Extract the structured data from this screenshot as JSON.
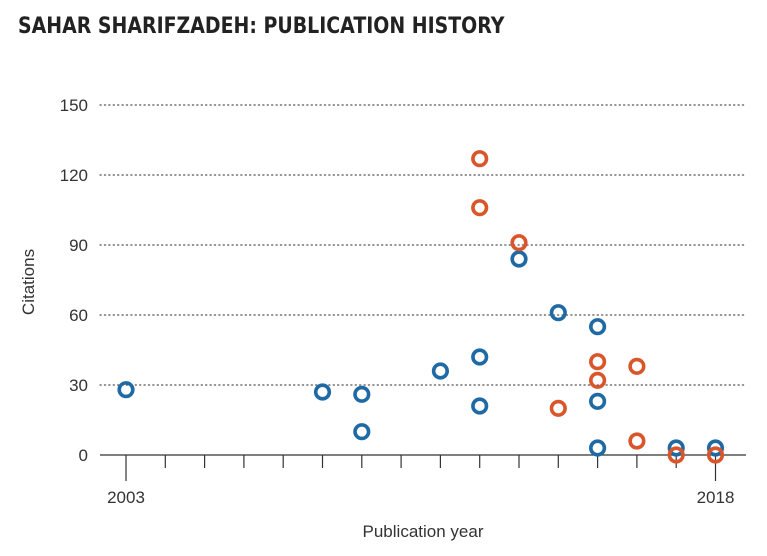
{
  "chart_data": {
    "type": "scatter",
    "title": "SAHAR SHARIFZADEH: PUBLICATION HISTORY",
    "xlabel": "Publication year",
    "ylabel": "Citations",
    "xlim": [
      2003,
      2018
    ],
    "ylim": [
      0,
      150
    ],
    "x_tick_labels": [
      {
        "value": 2003,
        "label": "2003"
      },
      {
        "value": 2018,
        "label": "2018"
      }
    ],
    "y_ticks": [
      {
        "value": 0,
        "label": "0"
      },
      {
        "value": 30,
        "label": "30"
      },
      {
        "value": 60,
        "label": "60"
      },
      {
        "value": 90,
        "label": "90"
      },
      {
        "value": 120,
        "label": "120"
      },
      {
        "value": 150,
        "label": "150"
      }
    ],
    "grid": "horizontal-dotted",
    "series": [
      {
        "name": "blue",
        "color": "#1f6aa5",
        "points": [
          {
            "x": 2003,
            "y": 28
          },
          {
            "x": 2008,
            "y": 27
          },
          {
            "x": 2009,
            "y": 26
          },
          {
            "x": 2009,
            "y": 10
          },
          {
            "x": 2011,
            "y": 36
          },
          {
            "x": 2012,
            "y": 42
          },
          {
            "x": 2012,
            "y": 21
          },
          {
            "x": 2013,
            "y": 84
          },
          {
            "x": 2014,
            "y": 61
          },
          {
            "x": 2015,
            "y": 55
          },
          {
            "x": 2015,
            "y": 23
          },
          {
            "x": 2015,
            "y": 3
          },
          {
            "x": 2017,
            "y": 3
          },
          {
            "x": 2018,
            "y": 3
          }
        ]
      },
      {
        "name": "orange",
        "color": "#d9562b",
        "points": [
          {
            "x": 2012,
            "y": 127
          },
          {
            "x": 2012,
            "y": 106
          },
          {
            "x": 2013,
            "y": 91
          },
          {
            "x": 2014,
            "y": 20
          },
          {
            "x": 2015,
            "y": 40
          },
          {
            "x": 2015,
            "y": 32
          },
          {
            "x": 2016,
            "y": 38
          },
          {
            "x": 2016,
            "y": 6
          },
          {
            "x": 2017,
            "y": 0
          },
          {
            "x": 2018,
            "y": 0
          }
        ]
      }
    ]
  }
}
